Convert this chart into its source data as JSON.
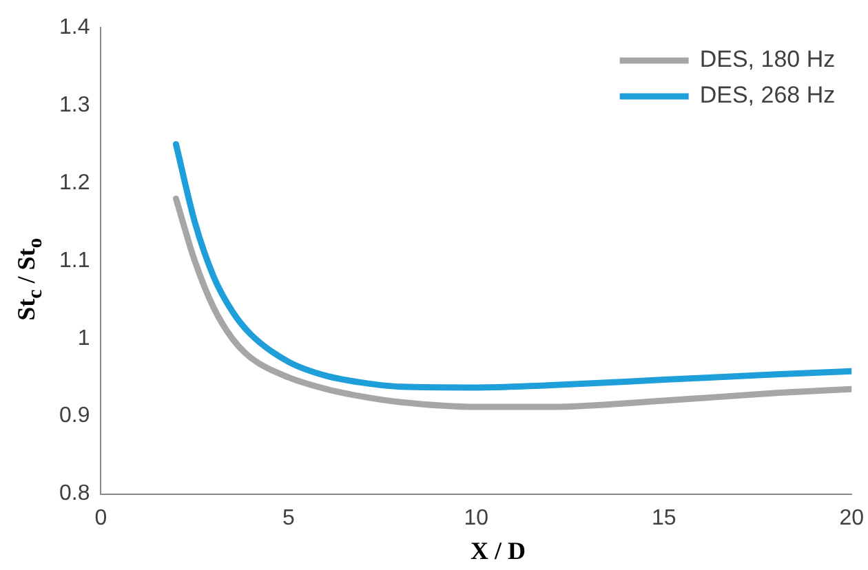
{
  "chart_data": {
    "type": "line",
    "xlabel": "X / D",
    "ylabel": "St$_{c}$ / St$_{o}$",
    "xlim": [
      0,
      20
    ],
    "xticks": [
      0,
      5,
      10,
      15,
      20
    ],
    "ylim": [
      0.8,
      1.4
    ],
    "yticks": [
      {
        "value": 0.8,
        "label": "0.8"
      },
      {
        "value": 0.9,
        "label": "0.9"
      },
      {
        "value": 1,
        "label": "1"
      },
      {
        "value": 1.1,
        "label": "1.1"
      },
      {
        "value": 1.2,
        "label": "1.2"
      },
      {
        "value": 1.3,
        "label": "1.3"
      },
      {
        "value": 1.4,
        "label": "1.4"
      }
    ],
    "grid": false,
    "legend": "top right",
    "marker": "none",
    "line_style": "solid",
    "x": [
      2,
      2.5,
      3,
      3.5,
      4,
      5,
      6,
      7,
      8,
      10,
      12,
      15,
      18,
      20
    ],
    "series": [
      {
        "name": "DES, 180 Hz",
        "color": "#a6a6a6",
        "values": [
          1.18,
          1.1,
          1.04,
          1.0,
          0.975,
          0.95,
          0.935,
          0.925,
          0.918,
          0.912,
          0.912,
          0.92,
          0.93,
          0.935
        ]
      },
      {
        "name": "DES, 268 Hz",
        "color": "#1f9fd9",
        "values": [
          1.25,
          1.15,
          1.08,
          1.035,
          1.005,
          0.97,
          0.952,
          0.943,
          0.938,
          0.937,
          0.94,
          0.947,
          0.954,
          0.958
        ]
      }
    ]
  }
}
